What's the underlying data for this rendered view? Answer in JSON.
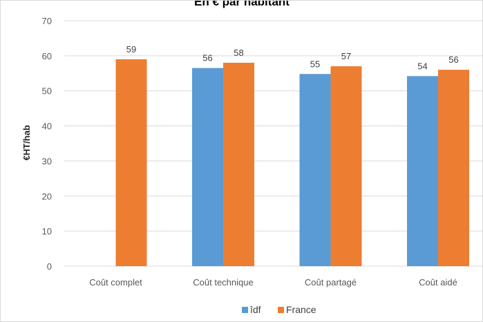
{
  "chart_data": {
    "type": "bar",
    "title": "En € par habitant",
    "xlabel": "",
    "ylabel": "€HT/hab",
    "ylim": [
      0,
      70
    ],
    "yticks": [
      0,
      10,
      20,
      30,
      40,
      50,
      60,
      70
    ],
    "categories": [
      "Coût complet",
      "Coût technique",
      "Coût partagé",
      "Coût aidé"
    ],
    "series": [
      {
        "name": "îdf",
        "color": "#5b9bd5",
        "values": [
          null,
          56.5,
          54.8,
          54.2
        ],
        "labels": [
          "",
          "56",
          "55",
          "54"
        ]
      },
      {
        "name": "France",
        "color": "#ed7d31",
        "values": [
          59,
          58,
          57,
          56
        ],
        "labels": [
          "59",
          "58",
          "57",
          "56"
        ]
      }
    ],
    "grid": true,
    "gridColor": "#d9d9d9",
    "legend": "bottom"
  }
}
